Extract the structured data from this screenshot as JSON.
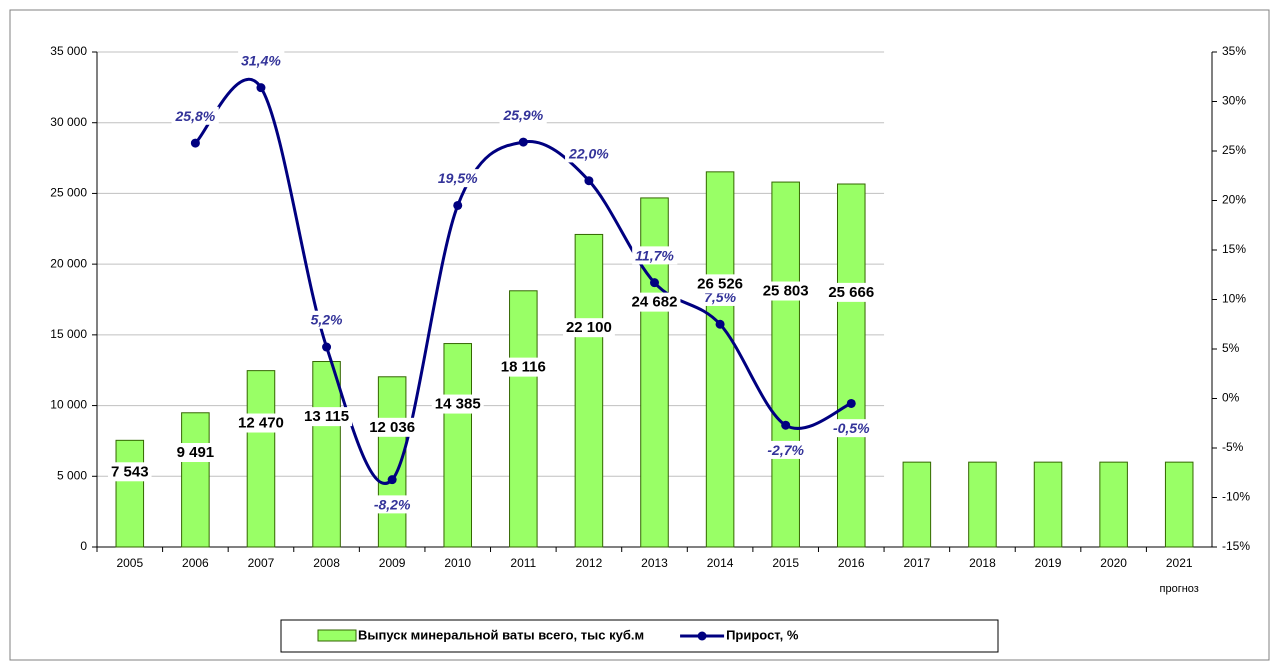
{
  "chart_data": {
    "type": "combo",
    "categories": [
      "2005",
      "2006",
      "2007",
      "2008",
      "2009",
      "2010",
      "2011",
      "2012",
      "2013",
      "2014",
      "2015",
      "2016",
      "2017",
      "2018",
      "2019",
      "2020",
      "2021"
    ],
    "forecast_note": "прогноз",
    "ylim": [
      0,
      35000
    ],
    "yticks": [
      0,
      {
        "value": 5000,
        "label": "5 000"
      },
      {
        "value": 10000,
        "label": "10 000"
      },
      {
        "value": 15000,
        "label": "15 000"
      },
      {
        "value": 20000,
        "label": "20 000"
      },
      {
        "value": 25000,
        "label": "25 000"
      },
      {
        "value": 30000,
        "label": "30 000"
      },
      {
        "value": 35000,
        "label": "35 000"
      }
    ],
    "y2lim": [
      -15,
      35
    ],
    "y2ticks": [
      {
        "value": -15,
        "label": "-15%"
      },
      {
        "value": -10,
        "label": "-10%"
      },
      {
        "value": -5,
        "label": "-5%"
      },
      {
        "value": 0,
        "label": "0%"
      },
      {
        "value": 5,
        "label": "5%"
      },
      {
        "value": 10,
        "label": "10%"
      },
      {
        "value": 15,
        "label": "15%"
      },
      {
        "value": 20,
        "label": "20%"
      },
      {
        "value": 25,
        "label": "25%"
      },
      {
        "value": 30,
        "label": "30%"
      },
      {
        "value": 35,
        "label": "35%"
      }
    ],
    "grid": true,
    "legend": "bottom",
    "series": [
      {
        "name": "Выпуск минеральной ваты всего, тыс куб.м",
        "type": "bar",
        "color": "#99ff66",
        "values": [
          7543,
          9491,
          12470,
          13115,
          12036,
          14385,
          18116,
          22100,
          24682,
          26526,
          25803,
          25666,
          6000,
          6000,
          6000,
          6000,
          6000
        ],
        "value_labels": [
          "7 543",
          "9 491",
          "12 470",
          "13 115",
          "12 036",
          "14 385",
          "18 116",
          "22 100",
          "24 682",
          "26 526",
          "25 803",
          "25 666",
          null,
          null,
          null,
          null,
          null
        ]
      },
      {
        "name": "Прирост, %",
        "type": "line",
        "axis": "y2",
        "color": "#000080",
        "values": [
          null,
          25.8,
          31.4,
          5.2,
          -8.2,
          19.5,
          25.9,
          22.0,
          11.7,
          7.5,
          -2.7,
          -0.5,
          null,
          null,
          null,
          null,
          null
        ],
        "value_labels": [
          null,
          "25,8%",
          "31,4%",
          "5,2%",
          "-8,2%",
          "19,5%",
          "25,9%",
          "22,0%",
          "11,7%",
          "7,5%",
          "-2,7%",
          "-0,5%",
          null,
          null,
          null,
          null,
          null
        ]
      }
    ]
  }
}
